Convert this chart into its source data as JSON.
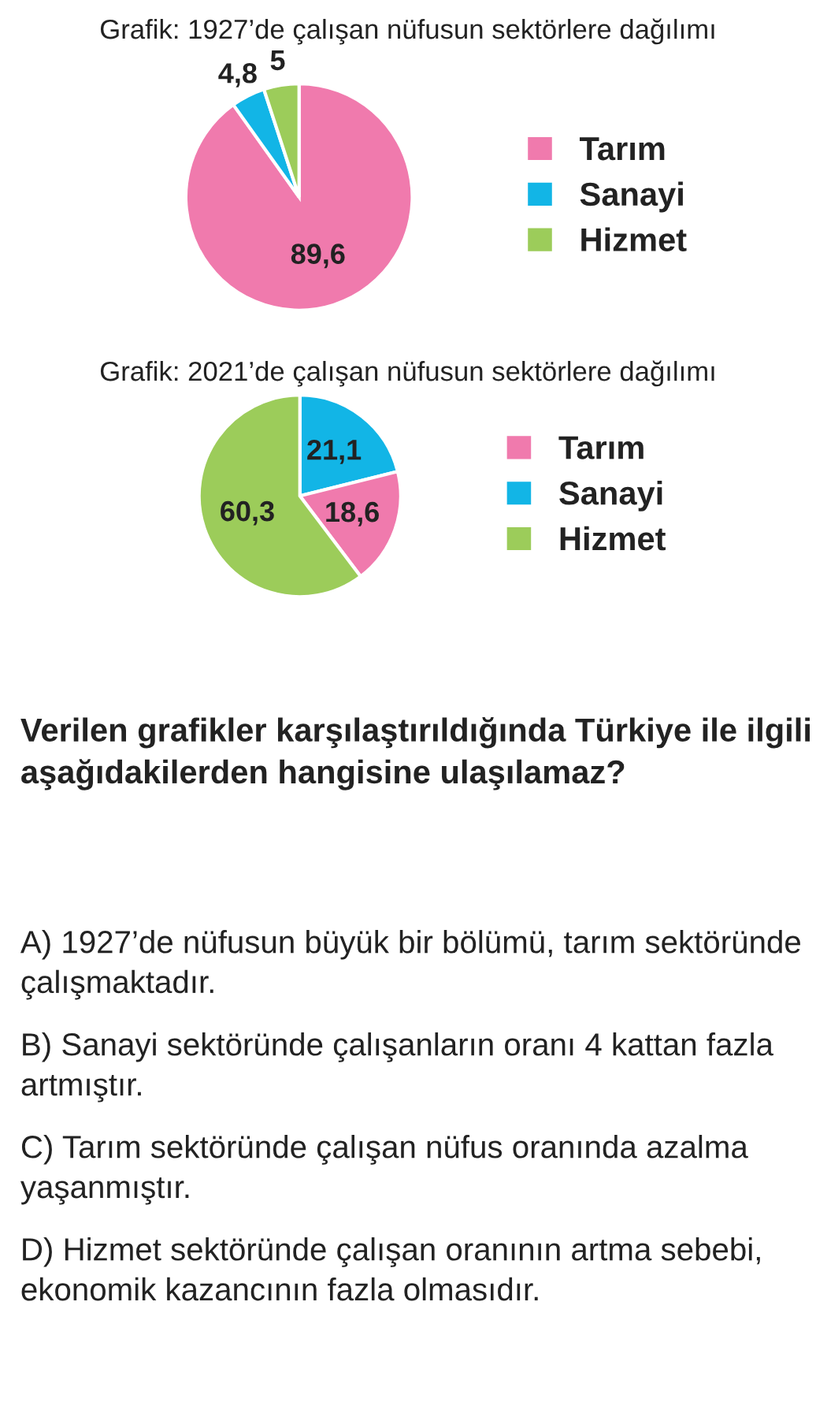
{
  "chart_data": [
    {
      "type": "pie",
      "title": "Grafik: 1927’de çalışan nüfusun sektörlere dağılımı",
      "categories": [
        "Tarım",
        "Sanayi",
        "Hizmet"
      ],
      "values": [
        89.6,
        4.8,
        5
      ],
      "colors": [
        "#f07aad",
        "#12b5e6",
        "#9ccc5a"
      ],
      "value_labels": [
        "89,6",
        "4,8",
        "5"
      ],
      "legend": "right"
    },
    {
      "type": "pie",
      "title": "Grafik: 2021’de çalışan nüfusun sektörlere dağılımı",
      "categories": [
        "Tarım",
        "Sanayi",
        "Hizmet"
      ],
      "values": [
        18.6,
        21.1,
        60.3
      ],
      "colors": [
        "#f07aad",
        "#12b5e6",
        "#9ccc5a"
      ],
      "value_labels": [
        "18,6",
        "21,1",
        "60,3"
      ],
      "legend": "right",
      "annotations": [
        "Verilen grafikler karşılaştırıldığında Türkiye ile ilgili aşağıdakilerden hangisine ulaşılamaz?",
        "A) 1927’de nüfusun büyük bir bölümü, tarım sektöründe çalışmaktadır.",
        "B) Sanayi sektöründe çalışanların oranı 4 kattan fazla artmıştır.",
        "C) Tarım sektöründe çalışan nüfus oranında azalma yaşanmıştır.",
        "D) Hizmet sektöründe çalışan oranının artma sebebi, ekonomik kazancının fazla olmasıdır."
      ]
    }
  ]
}
